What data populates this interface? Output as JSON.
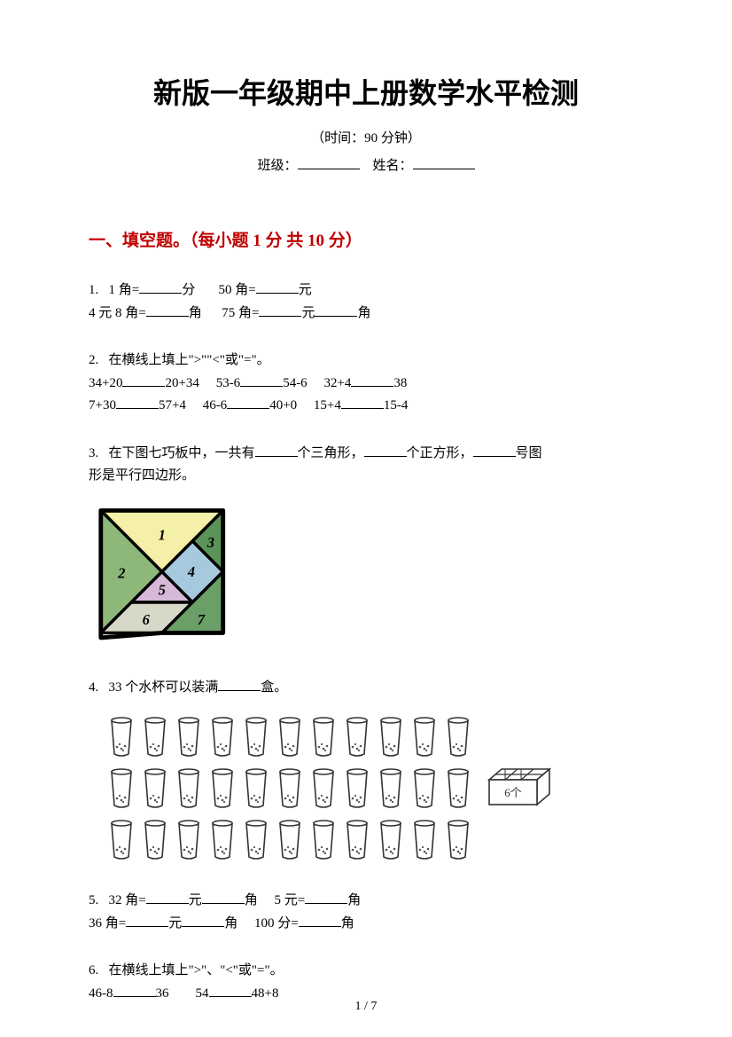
{
  "title": "新版一年级期中上册数学水平检测",
  "subtitle": "（时间：90 分钟）",
  "label_class": "班级：",
  "label_name": "姓名：",
  "section1": "一、填空题。（每小题 1 分  共 10 分）",
  "q1": {
    "num": "1.",
    "p1a": "1 角=",
    "p1b": "分",
    "p2a": "50 角=",
    "p2b": "元",
    "l2a": "4 元 8 角=",
    "l2b": "角",
    "l2c": "75 角=",
    "l2d": "元",
    "l2e": "角"
  },
  "q2": {
    "num": "2.",
    "prompt": "在横线上填上\">\"\"<\"或\"=\"。",
    "r1": [
      "34+20",
      "20+34",
      "53-6",
      "54-6",
      "32+4",
      "38"
    ],
    "r2": [
      "7+30",
      "57+4",
      "46-6",
      "40+0",
      "15+4",
      "15-4"
    ]
  },
  "q3": {
    "num": "3.",
    "t1": "在下图七巧板中，一共有",
    "t2": "个三角形，",
    "t3": "个正方形，",
    "t4": "号图",
    "t5": "形是平行四边形。"
  },
  "tangram": {
    "size": 150,
    "stroke": "#000000",
    "pieces": {
      "p1": {
        "color": "#f5f0a8",
        "label": "1"
      },
      "p2": {
        "color": "#8db87a",
        "label": "2"
      },
      "p3": {
        "color": "#5a9458",
        "label": "3"
      },
      "p4": {
        "color": "#a6c9de",
        "label": "4"
      },
      "p5": {
        "color": "#d6b8d8",
        "label": "5"
      },
      "p6": {
        "color": "#d8d8c8",
        "label": "6"
      },
      "p7": {
        "color": "#6aa068",
        "label": "7"
      }
    }
  },
  "q4": {
    "num": "4.",
    "t1": "33 个水杯可以装满",
    "t2": "盒。"
  },
  "cups": {
    "rows": [
      11,
      11,
      11
    ],
    "box_label": "6个"
  },
  "q5": {
    "num": "5.",
    "a1": "32 角=",
    "a2": "元",
    "a3": "角",
    "b1": "5 元=",
    "b2": "角",
    "c1": "36 角=",
    "c2": "元",
    "c3": "角",
    "d1": "100 分=",
    "d2": "角"
  },
  "q6": {
    "num": "6.",
    "prompt": "在横线上填上\">\"、\"<\"或\"=\"。",
    "r1a": "46-8",
    "r1b": "36",
    "r1c": "54",
    "r1d": "48+8"
  },
  "page": "1 / 7"
}
